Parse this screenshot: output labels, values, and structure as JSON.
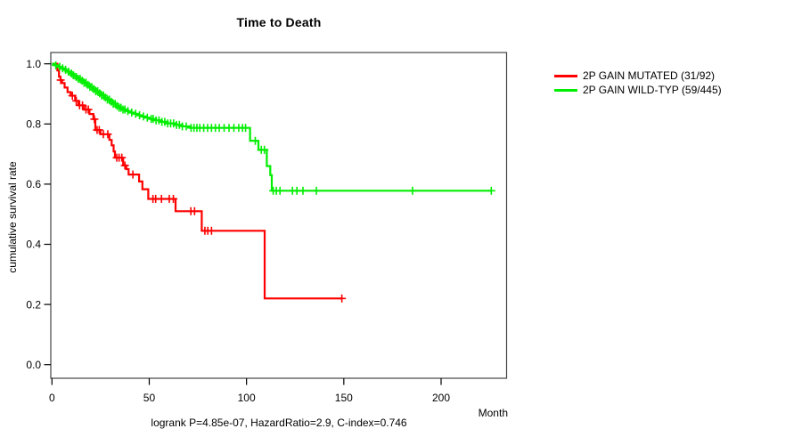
{
  "chart_data": {
    "type": "line",
    "subtype": "kaplan_meier_step",
    "title": "Time to Death",
    "xlabel": "Month",
    "ylabel": "cumulative survival rate",
    "footer": "logrank P=4.85e-07, HazardRatio=2.9, C-index=0.746",
    "xlim": [
      0,
      234
    ],
    "ylim": [
      0.0,
      1.0
    ],
    "xticks": [
      0,
      50,
      100,
      150,
      200
    ],
    "yticks": [
      0.0,
      0.2,
      0.4,
      0.6,
      0.8,
      1.0
    ],
    "ytick_labels": [
      "0.0",
      "0.2",
      "0.4",
      "0.6",
      "0.8",
      "1.0"
    ],
    "grid": false,
    "legend_position": "right-outside",
    "axis_color": "#000000",
    "box_color": "#444444",
    "series": [
      {
        "name": "2P GAIN MUTATED (31/92)",
        "color": "#ff0000",
        "steps": [
          [
            0,
            1.0
          ],
          [
            2.8,
            0.978
          ],
          [
            3.6,
            0.957
          ],
          [
            4.4,
            0.946
          ],
          [
            5.2,
            0.936
          ],
          [
            6.5,
            0.921
          ],
          [
            8,
            0.906
          ],
          [
            9.6,
            0.894
          ],
          [
            11.9,
            0.877
          ],
          [
            13.6,
            0.862
          ],
          [
            16.5,
            0.848
          ],
          [
            19.3,
            0.833
          ],
          [
            21.3,
            0.816
          ],
          [
            22.3,
            0.78
          ],
          [
            24.9,
            0.766
          ],
          [
            29.5,
            0.747
          ],
          [
            30.7,
            0.729
          ],
          [
            31.7,
            0.709
          ],
          [
            32.4,
            0.688
          ],
          [
            36.6,
            0.662
          ],
          [
            38.2,
            0.65
          ],
          [
            39.4,
            0.632
          ],
          [
            44.8,
            0.609
          ],
          [
            46.5,
            0.583
          ],
          [
            49.5,
            0.551
          ],
          [
            63.5,
            0.51
          ],
          [
            77,
            0.445
          ],
          [
            109.3,
            0.22
          ],
          [
            149,
            0.22
          ]
        ],
        "censor_months": [
          4.5,
          10.5,
          12.5,
          14.2,
          15.7,
          17.5,
          18.7,
          21.8,
          23.2,
          24.3,
          26.4,
          28.7,
          33.3,
          34.5,
          35.9,
          37.5,
          41.6,
          51.9,
          53.3,
          56.3,
          60.3,
          62.4,
          71.4,
          73.3,
          78.6,
          80.1,
          82,
          149
        ]
      },
      {
        "name": "2P GAIN WILD-TYP (59/445)",
        "color": "#00ee00",
        "steps": [
          [
            0,
            1.0
          ],
          [
            1.5,
            0.995
          ],
          [
            3,
            0.99
          ],
          [
            4.5,
            0.985
          ],
          [
            6,
            0.98
          ],
          [
            7.5,
            0.974
          ],
          [
            9,
            0.968
          ],
          [
            10.5,
            0.962
          ],
          [
            12,
            0.956
          ],
          [
            13.5,
            0.95
          ],
          [
            15,
            0.944
          ],
          [
            16.5,
            0.937
          ],
          [
            18,
            0.93
          ],
          [
            19.5,
            0.923
          ],
          [
            21,
            0.916
          ],
          [
            22.5,
            0.909
          ],
          [
            24,
            0.902
          ],
          [
            25.5,
            0.895
          ],
          [
            27,
            0.888
          ],
          [
            28.5,
            0.881
          ],
          [
            30,
            0.874
          ],
          [
            31.5,
            0.867
          ],
          [
            33,
            0.86
          ],
          [
            34.5,
            0.854
          ],
          [
            36,
            0.848
          ],
          [
            38,
            0.843
          ],
          [
            40,
            0.838
          ],
          [
            42,
            0.834
          ],
          [
            44,
            0.829
          ],
          [
            46,
            0.825
          ],
          [
            48,
            0.821
          ],
          [
            50,
            0.817
          ],
          [
            53,
            0.812
          ],
          [
            56,
            0.807
          ],
          [
            59,
            0.802
          ],
          [
            63,
            0.797
          ],
          [
            67,
            0.792
          ],
          [
            71,
            0.787
          ],
          [
            101.8,
            0.744
          ],
          [
            106.1,
            0.714
          ],
          [
            110.4,
            0.66
          ],
          [
            112.2,
            0.63
          ],
          [
            113,
            0.578
          ],
          [
            226,
            0.578
          ]
        ],
        "censor_months": [
          2,
          4,
          5.5,
          7,
          8.5,
          10,
          11,
          12.5,
          13.5,
          14.5,
          15.5,
          16.5,
          17.5,
          18.5,
          19.5,
          20.5,
          21.5,
          22.5,
          23.5,
          24.5,
          25.5,
          26.5,
          27.5,
          28.5,
          29.5,
          30.5,
          31.5,
          32.5,
          33.5,
          34.5,
          35.5,
          36.5,
          37.5,
          39,
          41,
          43,
          45,
          47,
          49,
          51,
          52,
          53.5,
          55,
          56.5,
          58,
          59.5,
          61,
          62.5,
          64,
          65.5,
          67,
          69,
          71.5,
          73,
          74.5,
          76,
          78,
          80,
          82,
          84,
          86,
          88.5,
          91,
          93.5,
          96,
          97.9,
          99.5,
          104.5,
          107.6,
          109.2,
          113.7,
          115.3,
          117.2,
          123.6,
          125.9,
          129,
          135.9,
          185.3,
          225.8
        ]
      }
    ]
  }
}
